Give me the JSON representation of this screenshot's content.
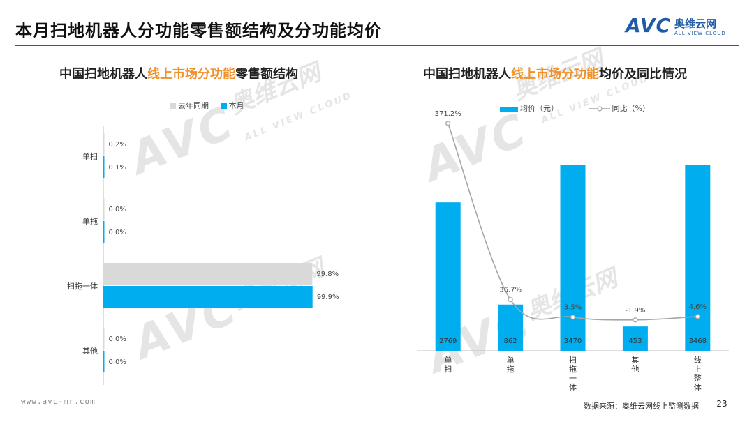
{
  "page_title": "本月扫地机器人分功能零售额结构及分功能均价",
  "brand": {
    "logo": "AVC",
    "name_cn": "奥维云网",
    "name_en": "ALL VIEW CLOUD"
  },
  "left_chart_title": {
    "part1": "中国扫地机器人",
    "highlight": "线上市场分功能",
    "part2": "零售额结构"
  },
  "right_chart_title": {
    "part1": "中国扫地机器人",
    "highlight": "线上市场分功能",
    "part2": "均价及同比情况"
  },
  "colors": {
    "accent": "#00aeef",
    "last_year": "#d9d9d9",
    "highlight_text": "#f0912b",
    "brand": "#1f5ba6",
    "line": "#a6a6a6"
  },
  "chart_data": [
    {
      "type": "bar",
      "orientation": "horizontal",
      "categories": [
        "单扫",
        "单拖",
        "扫拖一体",
        "其他"
      ],
      "series": [
        {
          "name": "去年同期",
          "values": [
            0.2,
            0.0,
            99.8,
            0.0
          ],
          "labels": [
            "0.2%",
            "0.0%",
            "99.8%",
            "0.0%"
          ]
        },
        {
          "name": "本月",
          "values": [
            0.1,
            0.0,
            99.9,
            0.0
          ],
          "labels": [
            "0.1%",
            "0.0%",
            "99.9%",
            "0.0%"
          ]
        }
      ],
      "xlim": [
        0,
        100
      ],
      "legend": "top"
    },
    {
      "type": "bar",
      "categories": [
        "单扫",
        "单拖",
        "扫拖一体",
        "其他",
        "线上整体"
      ],
      "series": [
        {
          "name": "均价（元）",
          "type": "bar",
          "values": [
            2769,
            862,
            3470,
            453,
            3468
          ],
          "labels": [
            "2769",
            "862",
            "3470",
            "453",
            "3468"
          ]
        },
        {
          "name": "同比（%）",
          "type": "line",
          "values": [
            371.2,
            36.7,
            3.5,
            -1.9,
            4.6
          ],
          "labels": [
            "371.2%",
            "36.7%",
            "3.5%",
            "-1.9%",
            "4.6%"
          ]
        }
      ],
      "ylim": [
        0,
        3500
      ],
      "y2lim": [
        -30,
        420
      ],
      "legend": "top"
    }
  ],
  "footer": {
    "url": "www.avc-mr.com",
    "source": "数据来源：奥维云网线上监测数据",
    "page": "-23-"
  }
}
